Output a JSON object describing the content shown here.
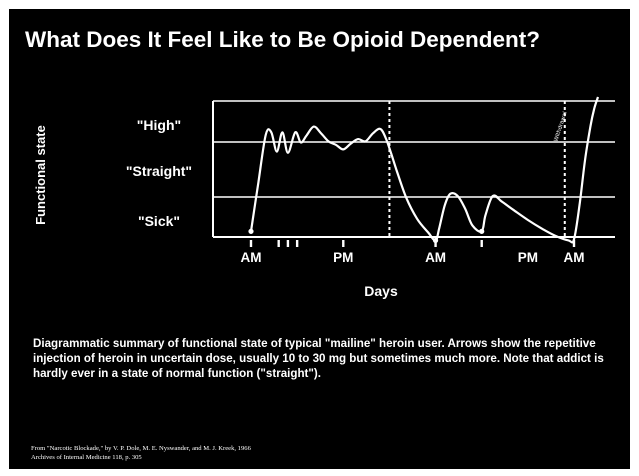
{
  "slide": {
    "title": "What Does It Feel Like to Be Opioid Dependent?",
    "caption": "Diagrammatic summary of functional state of typical \"mailine\" heroin user.  Arrows show the repetitive injection of heroin in uncertain dose, usually 10 to 30 mg but sometimes much more.  Note that addict is hardly ever in a state of normal function (\"straight\").",
    "source_line1": "From \"Narcotic Blockade,\" by V. P. Dole, M. E. Nyswander, and M. J. Kreek, 1966",
    "source_line2": "Archives of Internal Medicine 118, p. 305",
    "colors": {
      "background": "#000000",
      "foreground": "#ffffff"
    }
  },
  "chart_data": {
    "type": "line",
    "xlabel": "Days",
    "ylabel": "Functional state",
    "levels": [
      "\"High\"",
      "\"Straight\"",
      "\"Sick\""
    ],
    "x_ticks": [
      "AM",
      "PM",
      "AM",
      "PM",
      "AM"
    ],
    "x_tick_positions": [
      0,
      0.5,
      1.0,
      1.5,
      1.75
    ],
    "xlim": [
      0,
      1.9
    ],
    "ylim": [
      0,
      1.3
    ],
    "dashed_markers": [
      0.75,
      1.7
    ],
    "injection_markers": [
      0,
      0.15,
      0.2,
      0.25,
      0.5,
      1.0,
      1.25,
      1.75
    ],
    "curve_label": "Withdrawal",
    "series": [
      {
        "x": [
          0,
          0.04,
          0.08,
          0.11,
          0.14,
          0.17,
          0.2,
          0.24,
          0.27,
          0.3,
          0.34,
          0.38,
          0.42,
          0.46,
          0.5,
          0.54,
          0.58,
          0.62,
          0.66,
          0.7,
          0.73,
          0.76,
          0.79,
          0.84,
          0.9,
          0.96,
          1.0,
          1.02,
          1.05,
          1.08,
          1.12,
          1.16,
          1.2,
          1.25,
          1.27,
          1.31,
          1.36,
          1.42,
          1.5,
          1.58,
          1.65,
          1.72,
          1.75,
          1.78,
          1.81,
          1.84,
          1.86,
          1.88
        ],
        "y": [
          0.12,
          0.55,
          0.97,
          0.99,
          0.82,
          0.99,
          0.81,
          0.99,
          0.9,
          0.96,
          1.04,
          0.98,
          0.91,
          0.88,
          0.84,
          0.89,
          0.93,
          0.91,
          0.98,
          1.02,
          0.94,
          0.8,
          0.65,
          0.42,
          0.23,
          0.11,
          0.04,
          0.15,
          0.35,
          0.45,
          0.43,
          0.32,
          0.17,
          0.12,
          0.26,
          0.43,
          0.38,
          0.31,
          0.22,
          0.14,
          0.08,
          0.04,
          0.05,
          0.35,
          0.75,
          1.05,
          1.2,
          1.3
        ]
      }
    ],
    "grid": false
  }
}
